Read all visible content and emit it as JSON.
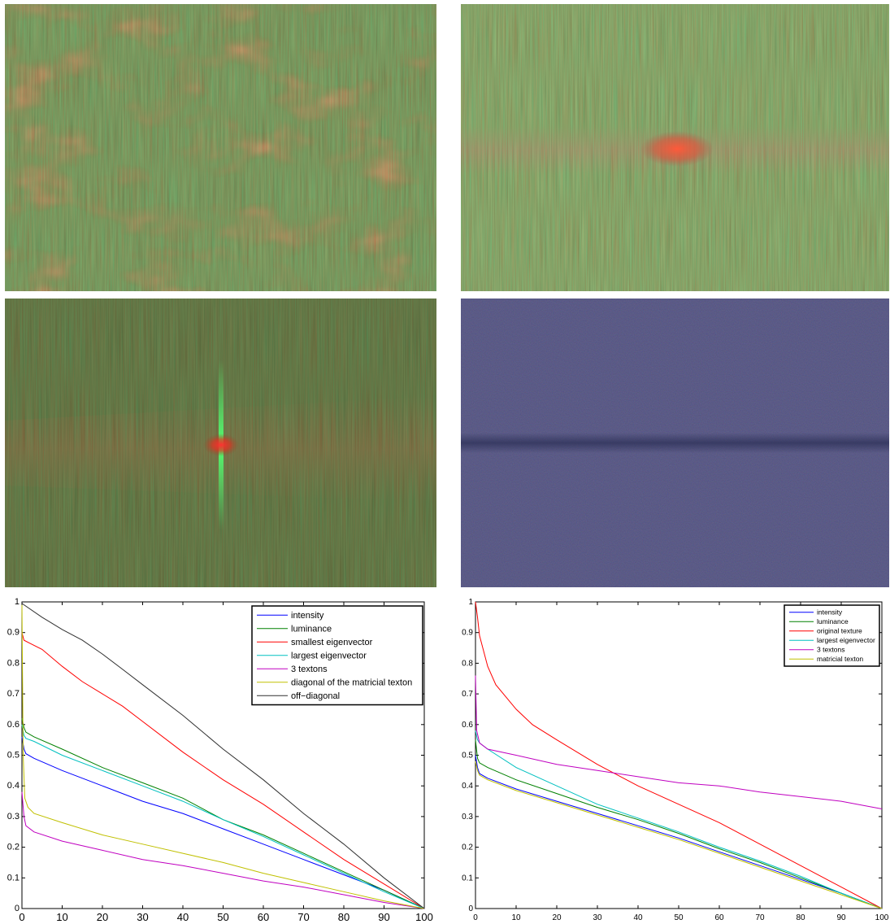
{
  "images": {
    "top_left": {
      "palette": {
        "base": "#4f7a38",
        "streak_dark": "#2c4a2a",
        "streak_light": "#86a860",
        "blob": "#c0604a"
      }
    },
    "top_right": {
      "palette": {
        "base": "#5f8a3e",
        "streak_dark": "#37522e",
        "streak_light": "#9ebe6a",
        "band": "#b0584a",
        "spot": "#ff5a3a"
      }
    },
    "mid_left": {
      "palette": {
        "base": "#3e5a28",
        "streak_dark": "#243a1c",
        "streak_light": "#6e8a44",
        "band": "#8a4a2a",
        "spot": "#ff3030",
        "line": "#50ff70"
      }
    },
    "mid_right": {
      "palette": {
        "base": "#3a3f7a",
        "noise": "#55507a",
        "band": "#2a2e55"
      }
    }
  },
  "chart_data": [
    {
      "type": "line",
      "xlim": [
        0,
        100
      ],
      "ylim": [
        0,
        1
      ],
      "xticks": [
        "0",
        "10",
        "20",
        "30",
        "40",
        "50",
        "60",
        "70",
        "80",
        "90",
        "100"
      ],
      "yticks": [
        "0",
        "0.1",
        "0.2",
        "0.3",
        "0.4",
        "0.5",
        "0.6",
        "0.7",
        "0.8",
        "0.9",
        "1"
      ],
      "legend_position": "top-right",
      "series": [
        {
          "name": "intensity",
          "color": "#0000ff",
          "points": [
            [
              0,
              0.56
            ],
            [
              0.5,
              0.52
            ],
            [
              1,
              0.505
            ],
            [
              3,
              0.49
            ],
            [
              10,
              0.45
            ],
            [
              20,
              0.4
            ],
            [
              30,
              0.35
            ],
            [
              40,
              0.31
            ],
            [
              50,
              0.26
            ],
            [
              60,
              0.21
            ],
            [
              70,
              0.16
            ],
            [
              80,
              0.11
            ],
            [
              90,
              0.06
            ],
            [
              100,
              0.0
            ]
          ]
        },
        {
          "name": "luminance",
          "color": "#008000",
          "points": [
            [
              0,
              0.62
            ],
            [
              0.5,
              0.59
            ],
            [
              1,
              0.575
            ],
            [
              3,
              0.56
            ],
            [
              10,
              0.52
            ],
            [
              20,
              0.46
            ],
            [
              30,
              0.41
            ],
            [
              40,
              0.36
            ],
            [
              50,
              0.29
            ],
            [
              60,
              0.24
            ],
            [
              70,
              0.18
            ],
            [
              80,
              0.12
            ],
            [
              90,
              0.06
            ],
            [
              100,
              0.0
            ]
          ]
        },
        {
          "name": "smallest eigenvector",
          "color": "#ff0000",
          "points": [
            [
              0,
              0.9
            ],
            [
              0.5,
              0.875
            ],
            [
              2,
              0.865
            ],
            [
              5,
              0.845
            ],
            [
              10,
              0.79
            ],
            [
              15,
              0.74
            ],
            [
              20,
              0.7
            ],
            [
              25,
              0.66
            ],
            [
              30,
              0.61
            ],
            [
              40,
              0.51
            ],
            [
              50,
              0.42
            ],
            [
              60,
              0.34
            ],
            [
              70,
              0.25
            ],
            [
              80,
              0.16
            ],
            [
              90,
              0.08
            ],
            [
              100,
              0.0
            ]
          ]
        },
        {
          "name": "largest eigenvector",
          "color": "#00c0c0",
          "points": [
            [
              0,
              0.6
            ],
            [
              0.5,
              0.565
            ],
            [
              1,
              0.555
            ],
            [
              3,
              0.545
            ],
            [
              10,
              0.5
            ],
            [
              20,
              0.45
            ],
            [
              30,
              0.4
            ],
            [
              40,
              0.35
            ],
            [
              50,
              0.29
            ],
            [
              60,
              0.235
            ],
            [
              70,
              0.175
            ],
            [
              80,
              0.115
            ],
            [
              90,
              0.055
            ],
            [
              100,
              0.0
            ]
          ]
        },
        {
          "name": "3 textons",
          "color": "#c000c0",
          "points": [
            [
              0,
              0.38
            ],
            [
              0.5,
              0.3
            ],
            [
              1,
              0.27
            ],
            [
              3,
              0.25
            ],
            [
              10,
              0.22
            ],
            [
              20,
              0.19
            ],
            [
              30,
              0.16
            ],
            [
              40,
              0.14
            ],
            [
              50,
              0.115
            ],
            [
              60,
              0.09
            ],
            [
              70,
              0.07
            ],
            [
              80,
              0.045
            ],
            [
              90,
              0.02
            ],
            [
              100,
              0.0
            ]
          ]
        },
        {
          "name": "diagonal of the matricial texton",
          "color": "#c0c000",
          "points": [
            [
              0,
              0.99
            ],
            [
              0.3,
              0.5
            ],
            [
              0.7,
              0.36
            ],
            [
              1.5,
              0.33
            ],
            [
              3,
              0.31
            ],
            [
              10,
              0.28
            ],
            [
              20,
              0.24
            ],
            [
              30,
              0.21
            ],
            [
              40,
              0.18
            ],
            [
              50,
              0.15
            ],
            [
              60,
              0.115
            ],
            [
              70,
              0.085
            ],
            [
              80,
              0.055
            ],
            [
              90,
              0.025
            ],
            [
              100,
              0.0
            ]
          ]
        },
        {
          "name": "off−diagonal",
          "color": "#303030",
          "points": [
            [
              0,
              0.995
            ],
            [
              5,
              0.95
            ],
            [
              10,
              0.91
            ],
            [
              15,
              0.875
            ],
            [
              20,
              0.83
            ],
            [
              25,
              0.78
            ],
            [
              30,
              0.73
            ],
            [
              40,
              0.63
            ],
            [
              50,
              0.52
            ],
            [
              60,
              0.42
            ],
            [
              70,
              0.31
            ],
            [
              80,
              0.21
            ],
            [
              90,
              0.1
            ],
            [
              100,
              0.0
            ]
          ]
        }
      ]
    },
    {
      "type": "line",
      "xlim": [
        0,
        100
      ],
      "ylim": [
        0,
        1
      ],
      "xticks": [
        "0",
        "10",
        "20",
        "30",
        "40",
        "50",
        "60",
        "70",
        "80",
        "90",
        "100"
      ],
      "yticks": [
        "0",
        "0.1",
        "0.2",
        "0.3",
        "0.4",
        "0.5",
        "0.6",
        "0.7",
        "0.8",
        "0.9",
        "1"
      ],
      "legend_position": "top-right",
      "series": [
        {
          "name": "intensity",
          "color": "#0000ff",
          "points": [
            [
              0,
              0.5
            ],
            [
              0.5,
              0.46
            ],
            [
              1,
              0.44
            ],
            [
              3,
              0.425
            ],
            [
              10,
              0.39
            ],
            [
              20,
              0.35
            ],
            [
              30,
              0.31
            ],
            [
              40,
              0.27
            ],
            [
              50,
              0.23
            ],
            [
              60,
              0.185
            ],
            [
              70,
              0.14
            ],
            [
              80,
              0.095
            ],
            [
              90,
              0.05
            ],
            [
              100,
              0.0
            ]
          ]
        },
        {
          "name": "luminance",
          "color": "#008000",
          "points": [
            [
              0,
              0.55
            ],
            [
              0.5,
              0.49
            ],
            [
              1,
              0.475
            ],
            [
              3,
              0.46
            ],
            [
              10,
              0.42
            ],
            [
              20,
              0.375
            ],
            [
              30,
              0.33
            ],
            [
              40,
              0.29
            ],
            [
              50,
              0.245
            ],
            [
              60,
              0.195
            ],
            [
              70,
              0.15
            ],
            [
              80,
              0.1
            ],
            [
              90,
              0.05
            ],
            [
              100,
              0.0
            ]
          ]
        },
        {
          "name": "original texture",
          "color": "#ff0000",
          "points": [
            [
              0,
              1.0
            ],
            [
              0.5,
              0.95
            ],
            [
              1,
              0.89
            ],
            [
              3,
              0.79
            ],
            [
              5,
              0.73
            ],
            [
              10,
              0.65
            ],
            [
              14,
              0.6
            ],
            [
              20,
              0.55
            ],
            [
              25,
              0.51
            ],
            [
              30,
              0.47
            ],
            [
              40,
              0.4
            ],
            [
              50,
              0.34
            ],
            [
              60,
              0.28
            ],
            [
              70,
              0.21
            ],
            [
              80,
              0.14
            ],
            [
              90,
              0.07
            ],
            [
              100,
              0.0
            ]
          ]
        },
        {
          "name": "largest eigenvector",
          "color": "#00c0c0",
          "points": [
            [
              0,
              0.58
            ],
            [
              0.5,
              0.55
            ],
            [
              1,
              0.54
            ],
            [
              3,
              0.52
            ],
            [
              10,
              0.46
            ],
            [
              20,
              0.4
            ],
            [
              30,
              0.34
            ],
            [
              40,
              0.295
            ],
            [
              50,
              0.25
            ],
            [
              60,
              0.2
            ],
            [
              70,
              0.155
            ],
            [
              80,
              0.105
            ],
            [
              90,
              0.05
            ],
            [
              100,
              0.0
            ]
          ]
        },
        {
          "name": "3 textons",
          "color": "#c000c0",
          "points": [
            [
              0,
              0.76
            ],
            [
              0.3,
              0.58
            ],
            [
              1,
              0.54
            ],
            [
              3,
              0.52
            ],
            [
              10,
              0.5
            ],
            [
              20,
              0.47
            ],
            [
              30,
              0.45
            ],
            [
              40,
              0.43
            ],
            [
              50,
              0.41
            ],
            [
              60,
              0.4
            ],
            [
              70,
              0.38
            ],
            [
              80,
              0.365
            ],
            [
              90,
              0.35
            ],
            [
              100,
              0.325
            ]
          ]
        },
        {
          "name": "matricial texton",
          "color": "#c0c000",
          "points": [
            [
              0,
              0.48
            ],
            [
              0.5,
              0.45
            ],
            [
              1,
              0.435
            ],
            [
              3,
              0.42
            ],
            [
              10,
              0.385
            ],
            [
              20,
              0.345
            ],
            [
              30,
              0.305
            ],
            [
              40,
              0.265
            ],
            [
              50,
              0.225
            ],
            [
              60,
              0.18
            ],
            [
              70,
              0.135
            ],
            [
              80,
              0.09
            ],
            [
              90,
              0.045
            ],
            [
              100,
              0.0
            ]
          ]
        }
      ]
    }
  ]
}
